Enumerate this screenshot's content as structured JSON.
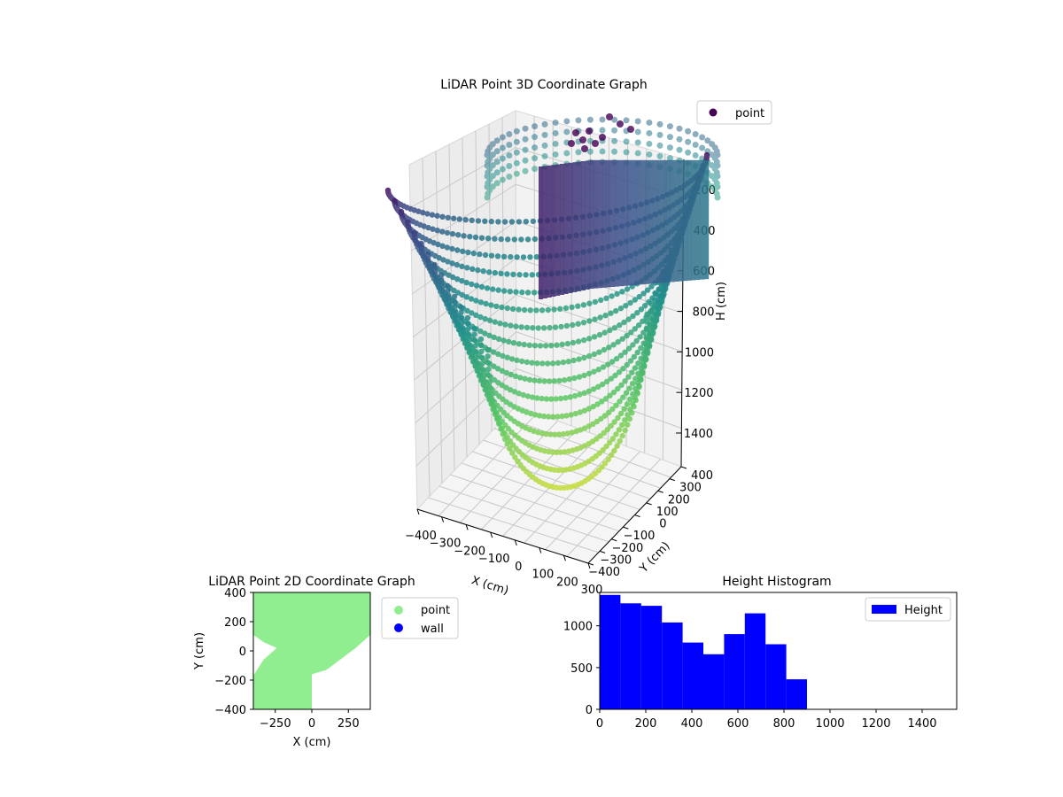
{
  "colors": {
    "viridis_dark": "#440154",
    "viridis_mid": "#21918c",
    "viridis_light": "#fde725",
    "point_2d": "#90ee90",
    "wall_2d": "#0000ff",
    "histogram": "#0000ff"
  },
  "chart_data": [
    {
      "type": "scatter3d",
      "title": "LiDAR Point 3D Coordinate Graph",
      "xlabel": "X (cm)",
      "ylabel": "Y (cm)",
      "zlabel": "H (cm)",
      "x_ticks": [
        "−400",
        "−300",
        "−200",
        "−100",
        "0",
        "100",
        "200",
        "300"
      ],
      "y_ticks": [
        "−400",
        "−300",
        "−200",
        "−100",
        "0",
        "100",
        "200",
        "300",
        "400"
      ],
      "z_ticks": [
        "200",
        "400",
        "600",
        "800",
        "1000",
        "1200",
        "1400"
      ],
      "z_inverted": true,
      "colormap": "viridis",
      "legend": {
        "placement": "top-right",
        "entries": [
          "point"
        ]
      },
      "grid": true
    },
    {
      "type": "scatter",
      "title": "LiDAR Point 2D Coordinate Graph",
      "xlabel": "X (cm)",
      "ylabel": "Y (cm)",
      "xlim": [
        -400,
        400
      ],
      "ylim": [
        -400,
        400
      ],
      "x_ticks": [
        "−250",
        "0",
        "250"
      ],
      "y_ticks": [
        "400",
        "200",
        "0",
        "−200",
        "−400"
      ],
      "legend": {
        "placement": "outside-right",
        "entries": [
          "point",
          "wall"
        ]
      },
      "region_boundary": [
        [
          -400,
          400
        ],
        [
          400,
          400
        ],
        [
          400,
          110
        ],
        [
          300,
          20
        ],
        [
          100,
          -130
        ],
        [
          0,
          -160
        ],
        [
          0,
          -400
        ],
        [
          -400,
          -400
        ],
        [
          -400,
          -170
        ],
        [
          -330,
          -60
        ],
        [
          -240,
          20
        ],
        [
          -330,
          60
        ],
        [
          -400,
          110
        ]
      ]
    },
    {
      "type": "bar",
      "title": "Height Histogram",
      "xlabel": "",
      "ylabel": "",
      "bin_edges": [
        0,
        90,
        180,
        270,
        360,
        450,
        540,
        630,
        720,
        810,
        900
      ],
      "series": [
        {
          "name": "Height",
          "values": [
            1370,
            1270,
            1240,
            1040,
            800,
            660,
            900,
            1150,
            780,
            360
          ]
        }
      ],
      "xlim": [
        0,
        1550
      ],
      "ylim": [
        0,
        1400
      ],
      "x_ticks": [
        "0",
        "200",
        "400",
        "600",
        "800",
        "1000",
        "1200",
        "1400"
      ],
      "y_ticks": [
        "0",
        "500",
        "1000"
      ],
      "legend": {
        "placement": "top-right",
        "entries": [
          "Height"
        ]
      }
    }
  ]
}
